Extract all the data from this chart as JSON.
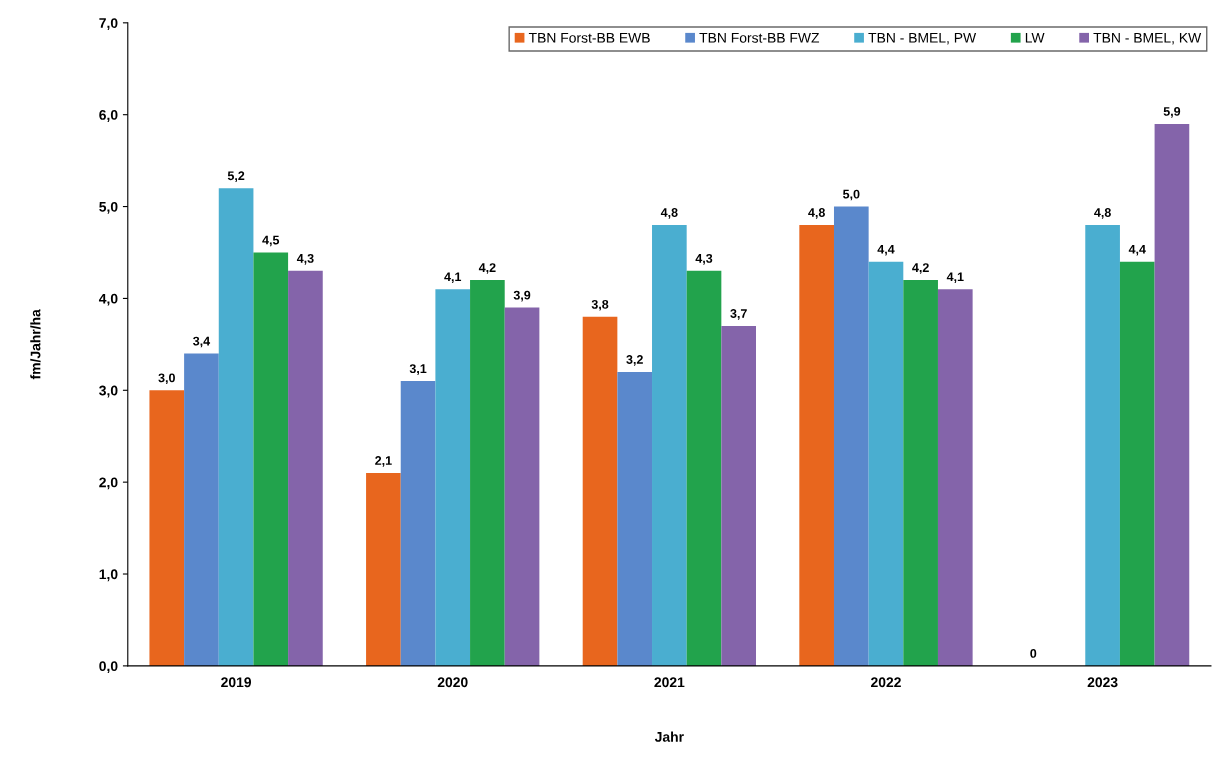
{
  "chart_data": {
    "type": "bar",
    "xlabel": "Jahr",
    "ylabel": "fm/Jahr/ha",
    "categories": [
      "2019",
      "2020",
      "2021",
      "2022",
      "2023"
    ],
    "series": [
      {
        "name": "TBN Forst-BB EWB",
        "color": "#e8661e",
        "values": [
          3.0,
          2.1,
          3.8,
          4.8,
          0
        ]
      },
      {
        "name": "TBN Forst-BB FWZ",
        "color": "#5a88cc",
        "values": [
          3.4,
          3.1,
          3.2,
          5.0,
          null
        ]
      },
      {
        "name": "TBN - BMEL, PW",
        "color": "#4aaed0",
        "values": [
          5.2,
          4.1,
          4.8,
          4.4,
          4.8
        ]
      },
      {
        "name": "LW",
        "color": "#22a34c",
        "values": [
          4.5,
          4.2,
          4.3,
          4.2,
          4.4
        ]
      },
      {
        "name": "TBN - BMEL, KW",
        "color": "#8464aa",
        "values": [
          4.3,
          3.9,
          3.7,
          4.1,
          5.9
        ]
      }
    ],
    "value_labels": [
      [
        "3,0",
        "2,1",
        "3,8",
        "4,8",
        "0"
      ],
      [
        "3,4",
        "3,1",
        "3,2",
        "5,0",
        null
      ],
      [
        "5,2",
        "4,1",
        "4,8",
        "4,4",
        "4,8"
      ],
      [
        "4,5",
        "4,2",
        "4,3",
        "4,2",
        "4,4"
      ],
      [
        "4,3",
        "3,9",
        "3,7",
        "4,1",
        "5,9"
      ]
    ],
    "ylim": [
      0,
      7
    ],
    "yticks": [
      {
        "value": 0,
        "label": "0,0"
      },
      {
        "value": 1,
        "label": "1,0"
      },
      {
        "value": 2,
        "label": "2,0"
      },
      {
        "value": 3,
        "label": "3,0"
      },
      {
        "value": 4,
        "label": "4,0"
      },
      {
        "value": 5,
        "label": "5,0"
      },
      {
        "value": 6,
        "label": "6,0"
      },
      {
        "value": 7,
        "label": "7,0"
      }
    ],
    "grid": false,
    "legend": "top right"
  }
}
